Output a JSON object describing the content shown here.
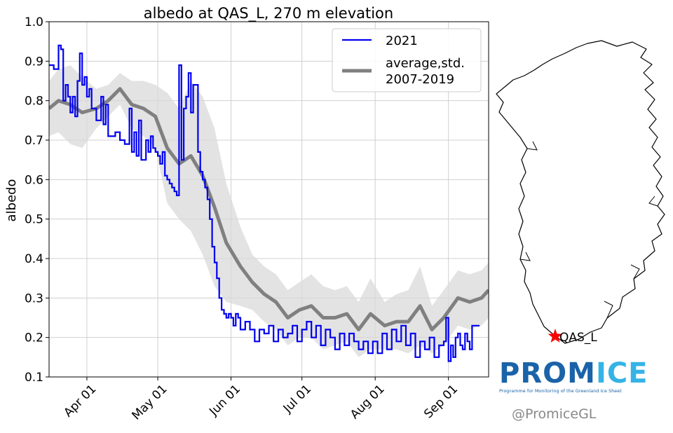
{
  "chart_data": {
    "type": "line",
    "title": "albedo at QAS_L, 270 m elevation",
    "xlabel": "",
    "ylabel": "albedo",
    "ylim": [
      0.1,
      1.0
    ],
    "xlim": [
      "2021-03-16",
      "2021-09-18"
    ],
    "yticks": [
      "0.1",
      "0.2",
      "0.3",
      "0.4",
      "0.5",
      "0.6",
      "0.7",
      "0.8",
      "0.9",
      "1.0"
    ],
    "xticks": [
      {
        "label": "Apr 01",
        "date": "2021-04-01"
      },
      {
        "label": "May 01",
        "date": "2021-05-01"
      },
      {
        "label": "Jun 01",
        "date": "2021-06-01"
      },
      {
        "label": "Jul 01",
        "date": "2021-07-01"
      },
      {
        "label": "Aug 01",
        "date": "2021-08-01"
      },
      {
        "label": "Sep 01",
        "date": "2021-09-01"
      }
    ],
    "grid": true,
    "legend_position": "top-right",
    "series": [
      {
        "name": "2021",
        "color": "#0000ee",
        "style": "step",
        "x": [
          "2021-03-16",
          "2021-03-18",
          "2021-03-20",
          "2021-03-21",
          "2021-03-22",
          "2021-03-23",
          "2021-03-24",
          "2021-03-25",
          "2021-03-26",
          "2021-03-27",
          "2021-03-28",
          "2021-03-29",
          "2021-03-30",
          "2021-03-31",
          "2021-04-01",
          "2021-04-02",
          "2021-04-03",
          "2021-04-05",
          "2021-04-07",
          "2021-04-08",
          "2021-04-09",
          "2021-04-10",
          "2021-04-11",
          "2021-04-13",
          "2021-04-15",
          "2021-04-17",
          "2021-04-19",
          "2021-04-20",
          "2021-04-21",
          "2021-04-22",
          "2021-04-23",
          "2021-04-24",
          "2021-04-26",
          "2021-04-27",
          "2021-04-28",
          "2021-04-29",
          "2021-04-30",
          "2021-05-01",
          "2021-05-02",
          "2021-05-03",
          "2021-05-04",
          "2021-05-05",
          "2021-05-06",
          "2021-05-07",
          "2021-05-08",
          "2021-05-09",
          "2021-05-10",
          "2021-05-11",
          "2021-05-12",
          "2021-05-13",
          "2021-05-14",
          "2021-05-15",
          "2021-05-16",
          "2021-05-18",
          "2021-05-19",
          "2021-05-20",
          "2021-05-21",
          "2021-05-22",
          "2021-05-23",
          "2021-05-24",
          "2021-05-25",
          "2021-05-26",
          "2021-05-27",
          "2021-05-28",
          "2021-05-29",
          "2021-05-30",
          "2021-05-31",
          "2021-06-01",
          "2021-06-02",
          "2021-06-03",
          "2021-06-04",
          "2021-06-05",
          "2021-06-07",
          "2021-06-09",
          "2021-06-11",
          "2021-06-13",
          "2021-06-15",
          "2021-06-17",
          "2021-06-19",
          "2021-06-21",
          "2021-06-23",
          "2021-06-25",
          "2021-06-27",
          "2021-06-29",
          "2021-07-01",
          "2021-07-03",
          "2021-07-05",
          "2021-07-07",
          "2021-07-09",
          "2021-07-11",
          "2021-07-13",
          "2021-07-15",
          "2021-07-17",
          "2021-07-19",
          "2021-07-21",
          "2021-07-23",
          "2021-07-25",
          "2021-07-27",
          "2021-07-29",
          "2021-07-31",
          "2021-08-02",
          "2021-08-04",
          "2021-08-06",
          "2021-08-08",
          "2021-08-10",
          "2021-08-12",
          "2021-08-14",
          "2021-08-16",
          "2021-08-18",
          "2021-08-20",
          "2021-08-22",
          "2021-08-24",
          "2021-08-26",
          "2021-08-28",
          "2021-08-30",
          "2021-08-31",
          "2021-09-01",
          "2021-09-02",
          "2021-09-03",
          "2021-09-04",
          "2021-09-05",
          "2021-09-06",
          "2021-09-07",
          "2021-09-08",
          "2021-09-09",
          "2021-09-10",
          "2021-09-11",
          "2021-09-12",
          "2021-09-13"
        ],
        "y": [
          0.89,
          0.88,
          0.94,
          0.93,
          0.8,
          0.84,
          0.81,
          0.77,
          0.81,
          0.76,
          0.85,
          0.92,
          0.84,
          0.86,
          0.81,
          0.83,
          0.78,
          0.75,
          0.81,
          0.74,
          0.79,
          0.71,
          0.71,
          0.72,
          0.7,
          0.69,
          0.78,
          0.67,
          0.72,
          0.66,
          0.75,
          0.65,
          0.7,
          0.67,
          0.71,
          0.68,
          0.67,
          0.66,
          0.64,
          0.67,
          0.61,
          0.6,
          0.59,
          0.58,
          0.57,
          0.56,
          0.89,
          0.65,
          0.78,
          0.81,
          0.87,
          0.77,
          0.84,
          0.67,
          0.62,
          0.6,
          0.58,
          0.55,
          0.5,
          0.43,
          0.39,
          0.35,
          0.3,
          0.27,
          0.26,
          0.25,
          0.26,
          0.25,
          0.23,
          0.26,
          0.25,
          0.22,
          0.24,
          0.22,
          0.19,
          0.22,
          0.21,
          0.23,
          0.19,
          0.22,
          0.2,
          0.21,
          0.23,
          0.19,
          0.22,
          0.24,
          0.2,
          0.23,
          0.18,
          0.22,
          0.2,
          0.17,
          0.21,
          0.18,
          0.21,
          0.19,
          0.17,
          0.19,
          0.16,
          0.19,
          0.16,
          0.21,
          0.17,
          0.22,
          0.19,
          0.23,
          0.18,
          0.21,
          0.15,
          0.19,
          0.17,
          0.2,
          0.15,
          0.18,
          0.19,
          0.25,
          0.14,
          0.18,
          0.15,
          0.2,
          0.21,
          0.18,
          0.17,
          0.21,
          0.19,
          0.17,
          0.23,
          0.23,
          0.23
        ]
      },
      {
        "name": "average,std.\n2007-2019",
        "color": "#808080",
        "style": "band",
        "x": [
          "2021-03-16",
          "2021-03-20",
          "2021-03-25",
          "2021-03-30",
          "2021-04-05",
          "2021-04-10",
          "2021-04-15",
          "2021-04-20",
          "2021-04-25",
          "2021-04-30",
          "2021-05-05",
          "2021-05-10",
          "2021-05-15",
          "2021-05-20",
          "2021-05-25",
          "2021-05-30",
          "2021-06-05",
          "2021-06-10",
          "2021-06-15",
          "2021-06-20",
          "2021-06-25",
          "2021-06-30",
          "2021-07-05",
          "2021-07-10",
          "2021-07-15",
          "2021-07-20",
          "2021-07-25",
          "2021-07-30",
          "2021-08-05",
          "2021-08-10",
          "2021-08-15",
          "2021-08-20",
          "2021-08-25",
          "2021-08-30",
          "2021-09-05",
          "2021-09-10",
          "2021-09-15",
          "2021-09-18"
        ],
        "mean": [
          0.78,
          0.8,
          0.79,
          0.77,
          0.78,
          0.8,
          0.83,
          0.79,
          0.78,
          0.76,
          0.68,
          0.64,
          0.66,
          0.61,
          0.53,
          0.44,
          0.38,
          0.34,
          0.31,
          0.29,
          0.25,
          0.27,
          0.28,
          0.25,
          0.25,
          0.26,
          0.22,
          0.26,
          0.23,
          0.24,
          0.24,
          0.28,
          0.22,
          0.25,
          0.3,
          0.29,
          0.3,
          0.32
        ],
        "std": [
          0.07,
          0.08,
          0.1,
          0.09,
          0.05,
          0.04,
          0.04,
          0.06,
          0.07,
          0.08,
          0.14,
          0.14,
          0.19,
          0.2,
          0.2,
          0.15,
          0.1,
          0.07,
          0.07,
          0.07,
          0.07,
          0.07,
          0.08,
          0.08,
          0.07,
          0.07,
          0.07,
          0.09,
          0.06,
          0.07,
          0.08,
          0.1,
          0.06,
          0.07,
          0.07,
          0.07,
          0.07,
          0.07
        ]
      }
    ],
    "legend": [
      {
        "label": "2021",
        "color": "#0000ee"
      },
      {
        "label_lines": [
          "average,std.",
          "2007-2019"
        ],
        "color": "#808080"
      }
    ]
  },
  "map": {
    "station_label": "QAS_L",
    "station_marker_color": "#ff0000",
    "outline_icon": "greenland-outline-icon"
  },
  "branding": {
    "logo_prefix": "PROM",
    "logo_suffix": "ICE",
    "logo_subtitle": "Programme for Monitoring of the Greenland Ice Sheet",
    "handle": "@PromiceGL",
    "colors": {
      "dark_blue": "#1a63a8",
      "light_blue": "#35b3e6"
    }
  }
}
